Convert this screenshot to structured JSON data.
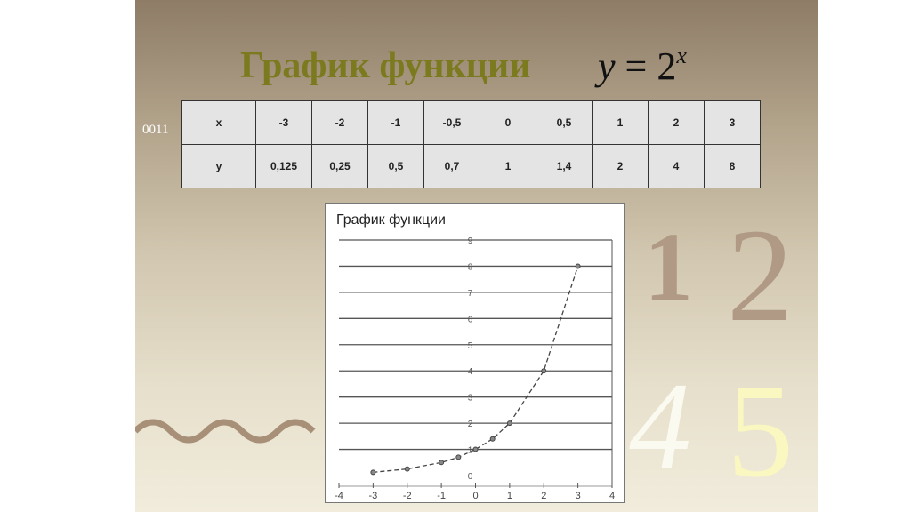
{
  "slide": {
    "title": "График функции",
    "formula": {
      "lhs": "y",
      "eq": "=",
      "base": "2",
      "exponent": "x"
    },
    "side_label": "0011",
    "decor_digits": [
      "1",
      "2",
      "4",
      "5"
    ]
  },
  "table": {
    "rows": [
      {
        "header": "x",
        "cells": [
          "-3",
          "-2",
          "-1",
          "-0,5",
          "0",
          "0,5",
          "1",
          "2",
          "3"
        ]
      },
      {
        "header": "y",
        "cells": [
          "0,125",
          "0,25",
          "0,5",
          "0,7",
          "1",
          "1,4",
          "2",
          "4",
          "8"
        ]
      }
    ]
  },
  "chart_data": {
    "type": "line",
    "title": "График функции",
    "x": [
      -3,
      -2,
      -1,
      -0.5,
      0,
      0.5,
      1,
      2,
      3
    ],
    "series": [
      {
        "values": [
          0.125,
          0.25,
          0.5,
          0.7,
          1,
          1.4,
          2,
          4,
          8
        ]
      }
    ],
    "xlim": [
      -4,
      4
    ],
    "ylim": [
      0,
      9
    ],
    "xticks": [
      "-4",
      "-3",
      "-2",
      "-1",
      "0",
      "1",
      "2",
      "3",
      "4"
    ],
    "yticks": [
      "0",
      "1",
      "2",
      "3",
      "4",
      "5",
      "6",
      "7",
      "8",
      "9"
    ],
    "grid": true,
    "line_style": "dashed",
    "marker": "circle"
  }
}
